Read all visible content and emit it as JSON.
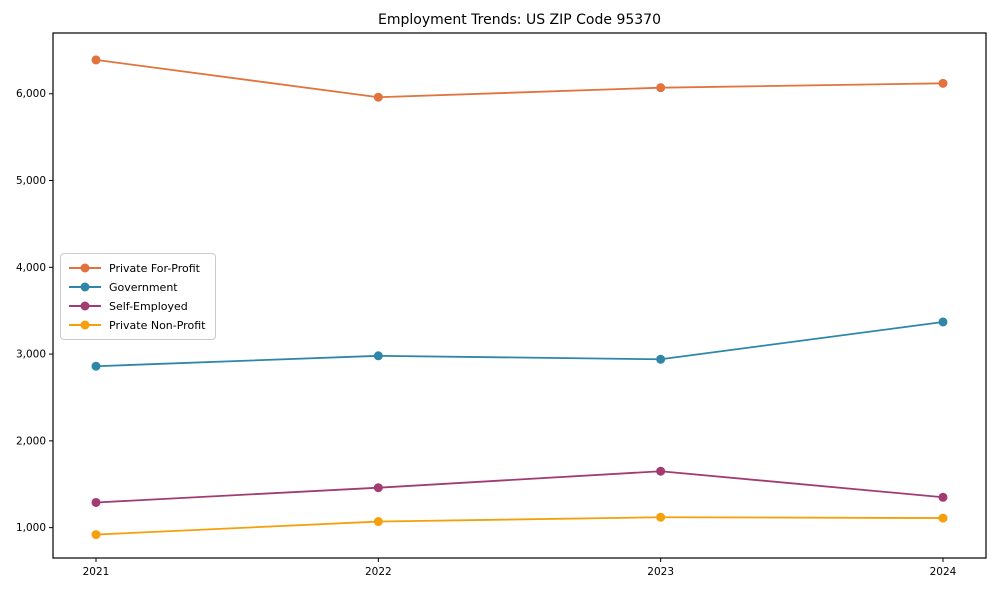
{
  "figure": {
    "background": "#ffffff",
    "spine_color": "#000000",
    "tick_label_color": "#000000"
  },
  "chart_data": {
    "type": "line",
    "title": "Employment Trends: US ZIP Code 95370",
    "xlabel": "",
    "ylabel": "",
    "x": [
      "2021",
      "2022",
      "2023",
      "2024"
    ],
    "yticks": [
      1000,
      2000,
      3000,
      4000,
      5000,
      6000
    ],
    "ylim": [
      650,
      6700
    ],
    "grid": false,
    "legend_position": "center-left",
    "marker": "circle",
    "series": [
      {
        "name": "Private For-Profit",
        "color": "#E2733C",
        "values": [
          6390,
          5960,
          6070,
          6120
        ]
      },
      {
        "name": "Government",
        "color": "#2E86A8",
        "values": [
          2860,
          2980,
          2940,
          3370
        ]
      },
      {
        "name": "Self-Employed",
        "color": "#A23B72",
        "values": [
          1290,
          1460,
          1650,
          1350
        ]
      },
      {
        "name": "Private Non-Profit",
        "color": "#F5A00A",
        "values": [
          920,
          1070,
          1120,
          1110
        ]
      }
    ]
  }
}
